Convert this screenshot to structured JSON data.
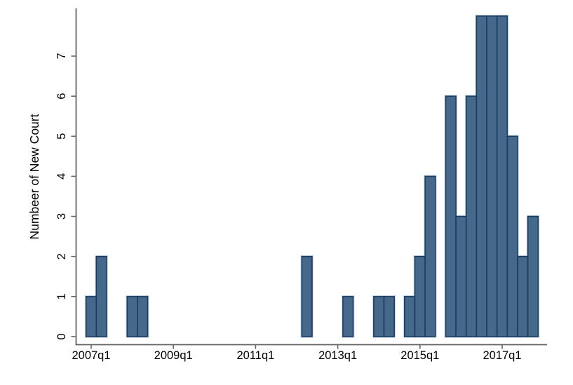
{
  "chart_data": {
    "type": "bar",
    "title": "",
    "xlabel": "",
    "ylabel": "Numbeer of New Court",
    "x_tick_labels": [
      "2007q1",
      "2009q1",
      "2011q1",
      "2013q1",
      "2015q1",
      "2017q1"
    ],
    "x_tick_quarter_index": [
      0,
      8,
      16,
      24,
      32,
      40
    ],
    "y_tick_labels": [
      "0",
      "1",
      "2",
      "3",
      "4",
      "5",
      "6",
      "7"
    ],
    "y_tick_values": [
      0,
      1,
      2,
      3,
      4,
      5,
      6,
      7
    ],
    "ylim": [
      0,
      8.4
    ],
    "x_range_quarters": [
      "2007q1",
      "2017q4"
    ],
    "grid": "off",
    "legend": "none",
    "bars": [
      {
        "quarter": "2007q1",
        "quarter_index": 0,
        "value": 1
      },
      {
        "quarter": "2007q2",
        "quarter_index": 1,
        "value": 2
      },
      {
        "quarter": "2008q1",
        "quarter_index": 4,
        "value": 1
      },
      {
        "quarter": "2008q2",
        "quarter_index": 5,
        "value": 1
      },
      {
        "quarter": "2012q2",
        "quarter_index": 21,
        "value": 2
      },
      {
        "quarter": "2013q2",
        "quarter_index": 25,
        "value": 1
      },
      {
        "quarter": "2014q1",
        "quarter_index": 28,
        "value": 1
      },
      {
        "quarter": "2014q2",
        "quarter_index": 29,
        "value": 1
      },
      {
        "quarter": "2014q4",
        "quarter_index": 31,
        "value": 1
      },
      {
        "quarter": "2015q1",
        "quarter_index": 32,
        "value": 2
      },
      {
        "quarter": "2015q2",
        "quarter_index": 33,
        "value": 4
      },
      {
        "quarter": "2015q4",
        "quarter_index": 35,
        "value": 6
      },
      {
        "quarter": "2016q1",
        "quarter_index": 36,
        "value": 3
      },
      {
        "quarter": "2016q2",
        "quarter_index": 37,
        "value": 6
      },
      {
        "quarter": "2016q3",
        "quarter_index": 38,
        "value": 8
      },
      {
        "quarter": "2016q4",
        "quarter_index": 39,
        "value": 8
      },
      {
        "quarter": "2017q1",
        "quarter_index": 40,
        "value": 8
      },
      {
        "quarter": "2017q2",
        "quarter_index": 41,
        "value": 5
      },
      {
        "quarter": "2017q3",
        "quarter_index": 42,
        "value": 2
      },
      {
        "quarter": "2017q4",
        "quarter_index": 43,
        "value": 3
      }
    ],
    "colors": {
      "bar_fill": "#46688B",
      "bar_border": "#1B3C61",
      "bar_halo": "#C6D4E2",
      "axis": "#636363",
      "text": "#000000",
      "background": "#FFFFFF"
    }
  }
}
